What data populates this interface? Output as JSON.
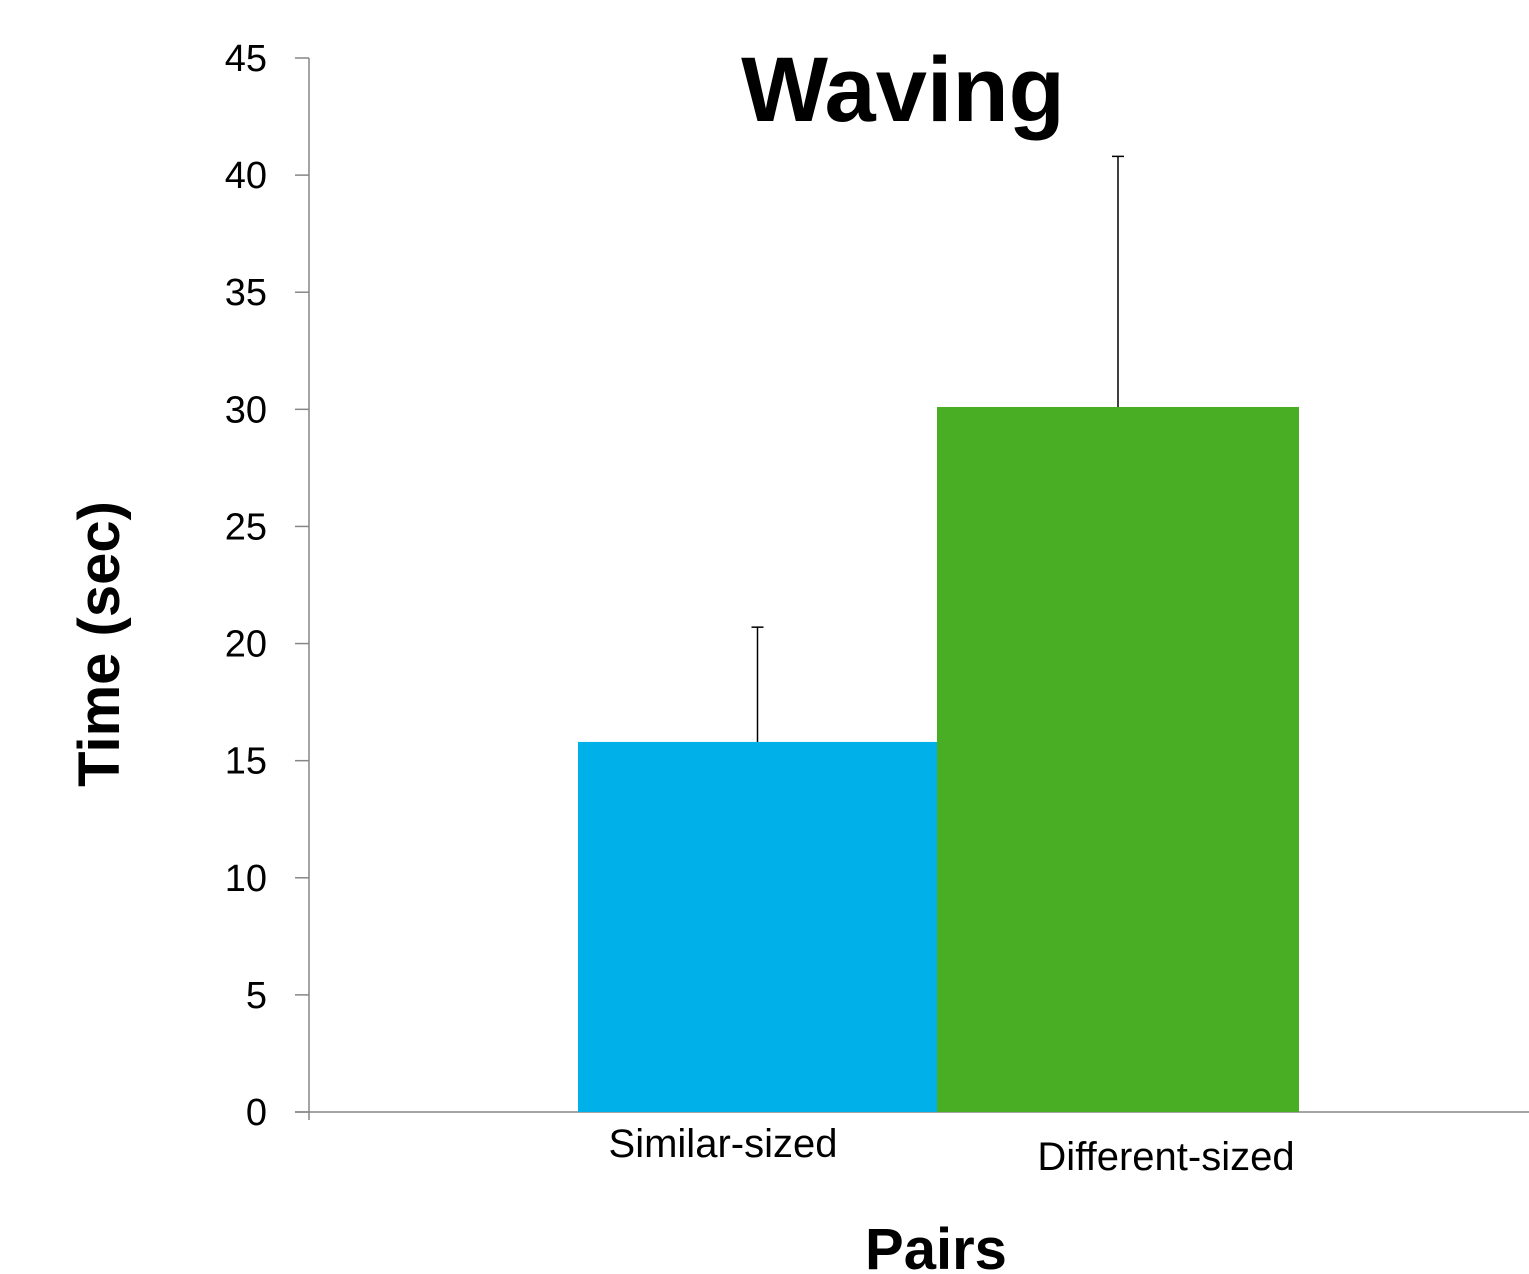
{
  "chart_data": {
    "type": "bar",
    "title": "Waving",
    "xlabel": "Pairs",
    "ylabel": "Time (sec)",
    "categories": [
      "Similar-sized",
      "Different-sized"
    ],
    "values": [
      15.8,
      30.1
    ],
    "error_upper": [
      4.9,
      10.7
    ],
    "ylim": [
      0,
      45
    ],
    "yticks": [
      "0",
      "5",
      "10",
      "15",
      "20",
      "25",
      "30",
      "35",
      "40",
      "45"
    ],
    "bar_colors": [
      "#00B0E8",
      "#4AAE25"
    ],
    "grid": false,
    "legend": "none"
  }
}
